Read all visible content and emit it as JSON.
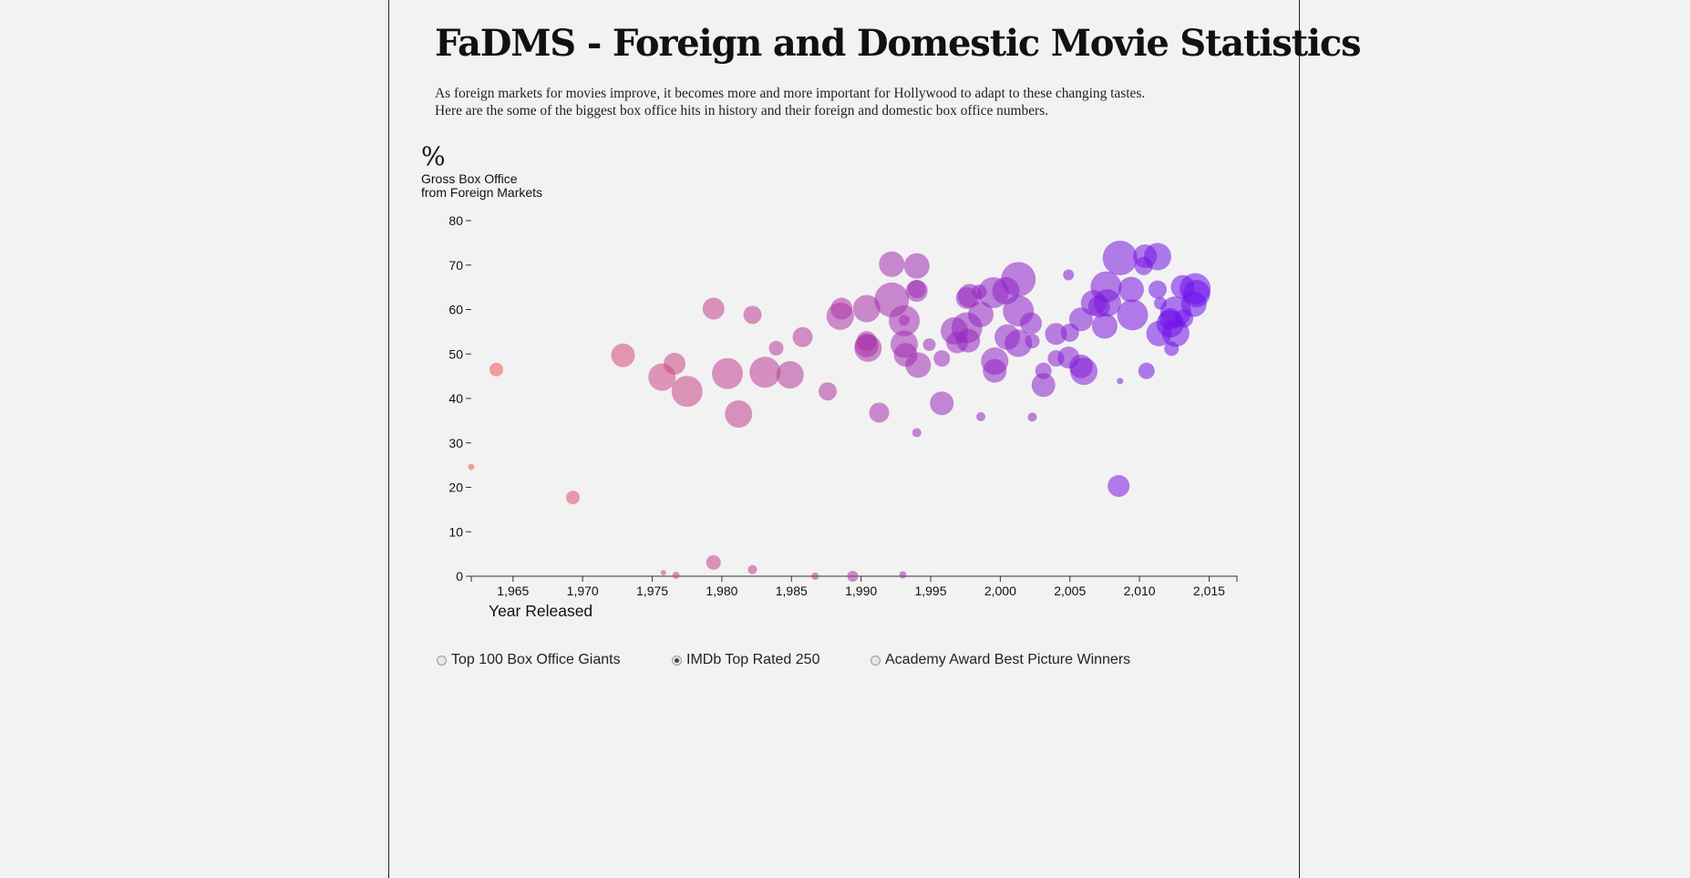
{
  "page": {
    "title": "FaDMS - Foreign and Domestic Movie Statistics",
    "intro_line1": "As foreign markets for movies improve, it becomes more and more important for Hollywood to adapt to these changing tastes.",
    "intro_line2": "Here are the some of the biggest box office hits in history and their foreign and domestic box office numbers."
  },
  "controls": {
    "options": [
      {
        "label": "Top 100 Box Office Giants",
        "checked": false
      },
      {
        "label": "IMDb Top Rated 250",
        "checked": true
      },
      {
        "label": "Academy Award Best Picture Winners",
        "checked": false
      }
    ]
  },
  "chart_data": {
    "type": "scatter",
    "y_symbol": "%",
    "ylabel_line1": "Gross Box Office",
    "ylabel_line2": "from Foreign Markets",
    "xlabel": "Year Released",
    "xlim": [
      1962,
      2017
    ],
    "ylim": [
      0,
      80
    ],
    "x_ticks": [
      1965,
      1970,
      1975,
      1980,
      1985,
      1990,
      1995,
      2000,
      2005,
      2010,
      2015
    ],
    "x_tick_labels": [
      "1,965",
      "1,970",
      "1,975",
      "1,980",
      "1,985",
      "1,990",
      "1,995",
      "2,000",
      "2,005",
      "2,010",
      "2,015"
    ],
    "y_ticks": [
      0,
      10,
      20,
      30,
      40,
      50,
      60,
      70,
      80
    ],
    "y_tick_labels": [
      "0",
      "10",
      "20",
      "30",
      "40",
      "50",
      "60",
      "70",
      "80"
    ],
    "color_old": "#f05a5a",
    "color_new": "#6a10f0",
    "grid": false,
    "points": [
      {
        "x": 1962.0,
        "y": 24.6,
        "size": 3.5
      },
      {
        "x": 1963.8,
        "y": 46.5,
        "size": 7.5
      },
      {
        "x": 1969.3,
        "y": 17.7,
        "size": 7.5
      },
      {
        "x": 1972.9,
        "y": 49.7,
        "size": 13
      },
      {
        "x": 1975.7,
        "y": 44.8,
        "size": 15
      },
      {
        "x": 1976.6,
        "y": 47.8,
        "size": 12
      },
      {
        "x": 1977.5,
        "y": 41.6,
        "size": 17
      },
      {
        "x": 1975.8,
        "y": 0.8,
        "size": 3
      },
      {
        "x": 1976.7,
        "y": 0.2,
        "size": 4
      },
      {
        "x": 1979.4,
        "y": 60.2,
        "size": 12
      },
      {
        "x": 1979.4,
        "y": 3.1,
        "size": 8
      },
      {
        "x": 1980.4,
        "y": 45.6,
        "size": 17
      },
      {
        "x": 1981.2,
        "y": 36.5,
        "size": 15
      },
      {
        "x": 1982.2,
        "y": 58.8,
        "size": 10
      },
      {
        "x": 1982.2,
        "y": 1.5,
        "size": 5
      },
      {
        "x": 1983.1,
        "y": 45.9,
        "size": 17
      },
      {
        "x": 1983.9,
        "y": 51.3,
        "size": 8
      },
      {
        "x": 1984.9,
        "y": 45.3,
        "size": 15
      },
      {
        "x": 1985.8,
        "y": 53.8,
        "size": 11
      },
      {
        "x": 1986.7,
        "y": 0.0,
        "size": 4
      },
      {
        "x": 1987.6,
        "y": 41.6,
        "size": 10
      },
      {
        "x": 1988.5,
        "y": 58.5,
        "size": 15
      },
      {
        "x": 1988.6,
        "y": 60.2,
        "size": 12
      },
      {
        "x": 1989.4,
        "y": 0.0,
        "size": 6
      },
      {
        "x": 1990.4,
        "y": 60.2,
        "size": 15
      },
      {
        "x": 1990.4,
        "y": 51.9,
        "size": 13
      },
      {
        "x": 1990.4,
        "y": 52.9,
        "size": 11
      },
      {
        "x": 1990.5,
        "y": 51.3,
        "size": 15
      },
      {
        "x": 1991.3,
        "y": 36.8,
        "size": 11
      },
      {
        "x": 1992.2,
        "y": 70.2,
        "size": 14
      },
      {
        "x": 1992.2,
        "y": 62.2,
        "size": 19
      },
      {
        "x": 1993.1,
        "y": 57.5,
        "size": 17
      },
      {
        "x": 1993.1,
        "y": 52.2,
        "size": 15
      },
      {
        "x": 1993.2,
        "y": 49.8,
        "size": 13
      },
      {
        "x": 1993.0,
        "y": 0.3,
        "size": 4
      },
      {
        "x": 1993.1,
        "y": 57.6,
        "size": 6
      },
      {
        "x": 1994.0,
        "y": 69.8,
        "size": 14
      },
      {
        "x": 1994.0,
        "y": 64.2,
        "size": 12
      },
      {
        "x": 1994.0,
        "y": 64.6,
        "size": 10
      },
      {
        "x": 1994.1,
        "y": 47.5,
        "size": 14
      },
      {
        "x": 1994.0,
        "y": 32.3,
        "size": 5
      },
      {
        "x": 1994.9,
        "y": 52.1,
        "size": 7
      },
      {
        "x": 1995.8,
        "y": 49.0,
        "size": 9
      },
      {
        "x": 1995.8,
        "y": 38.9,
        "size": 13
      },
      {
        "x": 1996.7,
        "y": 55.2,
        "size": 15
      },
      {
        "x": 1996.9,
        "y": 52.6,
        "size": 12
      },
      {
        "x": 1997.6,
        "y": 62.6,
        "size": 12
      },
      {
        "x": 1997.6,
        "y": 55.9,
        "size": 17
      },
      {
        "x": 1997.7,
        "y": 53.0,
        "size": 13
      },
      {
        "x": 1997.8,
        "y": 63.1,
        "size": 13
      },
      {
        "x": 1998.5,
        "y": 64.0,
        "size": 8
      },
      {
        "x": 1998.6,
        "y": 58.9,
        "size": 14
      },
      {
        "x": 1998.6,
        "y": 35.9,
        "size": 5
      },
      {
        "x": 1999.5,
        "y": 63.8,
        "size": 17
      },
      {
        "x": 1999.6,
        "y": 48.4,
        "size": 15
      },
      {
        "x": 1999.6,
        "y": 46.2,
        "size": 13
      },
      {
        "x": 2000.4,
        "y": 64.2,
        "size": 15
      },
      {
        "x": 2000.5,
        "y": 53.8,
        "size": 14
      },
      {
        "x": 2001.3,
        "y": 66.8,
        "size": 19
      },
      {
        "x": 2001.3,
        "y": 59.7,
        "size": 17
      },
      {
        "x": 2001.3,
        "y": 52.4,
        "size": 15
      },
      {
        "x": 2002.2,
        "y": 56.9,
        "size": 12
      },
      {
        "x": 2002.3,
        "y": 52.9,
        "size": 8
      },
      {
        "x": 2002.3,
        "y": 35.8,
        "size": 5
      },
      {
        "x": 2003.1,
        "y": 46.2,
        "size": 9
      },
      {
        "x": 2003.1,
        "y": 43.0,
        "size": 13
      },
      {
        "x": 2004.0,
        "y": 54.5,
        "size": 12
      },
      {
        "x": 2004.0,
        "y": 49.0,
        "size": 9
      },
      {
        "x": 2004.9,
        "y": 67.8,
        "size": 6
      },
      {
        "x": 2005.0,
        "y": 54.8,
        "size": 10
      },
      {
        "x": 2004.9,
        "y": 49.2,
        "size": 12
      },
      {
        "x": 2005.8,
        "y": 57.8,
        "size": 13
      },
      {
        "x": 2005.8,
        "y": 47.2,
        "size": 13
      },
      {
        "x": 2006.0,
        "y": 46.1,
        "size": 15
      },
      {
        "x": 2006.7,
        "y": 61.5,
        "size": 14
      },
      {
        "x": 2007.1,
        "y": 60.7,
        "size": 12
      },
      {
        "x": 2007.6,
        "y": 65.1,
        "size": 17
      },
      {
        "x": 2007.5,
        "y": 56.3,
        "size": 14
      },
      {
        "x": 2007.7,
        "y": 61.5,
        "size": 15
      },
      {
        "x": 2008.6,
        "y": 71.6,
        "size": 19
      },
      {
        "x": 2008.6,
        "y": 43.9,
        "size": 3.5
      },
      {
        "x": 2008.5,
        "y": 20.3,
        "size": 12
      },
      {
        "x": 2009.4,
        "y": 64.5,
        "size": 14
      },
      {
        "x": 2009.5,
        "y": 58.8,
        "size": 17
      },
      {
        "x": 2010.4,
        "y": 72.0,
        "size": 13
      },
      {
        "x": 2010.3,
        "y": 69.8,
        "size": 10
      },
      {
        "x": 2010.5,
        "y": 46.2,
        "size": 9
      },
      {
        "x": 2011.3,
        "y": 71.9,
        "size": 15
      },
      {
        "x": 2011.3,
        "y": 64.5,
        "size": 10
      },
      {
        "x": 2011.4,
        "y": 54.6,
        "size": 14
      },
      {
        "x": 2011.5,
        "y": 61.4,
        "size": 7
      },
      {
        "x": 2012.2,
        "y": 57.9,
        "size": 12
      },
      {
        "x": 2012.2,
        "y": 56.8,
        "size": 15
      },
      {
        "x": 2012.3,
        "y": 51.2,
        "size": 8
      },
      {
        "x": 2012.6,
        "y": 59.5,
        "size": 17
      },
      {
        "x": 2012.6,
        "y": 54.7,
        "size": 15
      },
      {
        "x": 2013.1,
        "y": 65.1,
        "size": 13
      },
      {
        "x": 2013.2,
        "y": 58.0,
        "size": 10
      },
      {
        "x": 2013.9,
        "y": 61.2,
        "size": 14
      },
      {
        "x": 2014.0,
        "y": 64.7,
        "size": 17
      },
      {
        "x": 2014.1,
        "y": 63.6,
        "size": 15
      }
    ]
  }
}
